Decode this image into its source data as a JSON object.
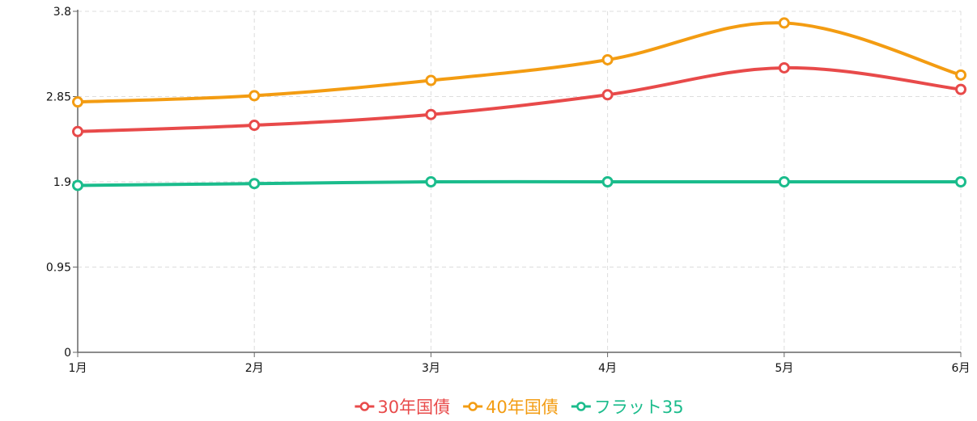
{
  "chart_data": {
    "type": "line",
    "categories": [
      "1月",
      "2月",
      "3月",
      "4月",
      "5月",
      "6月"
    ],
    "y_ticks": [
      "0",
      "0.95",
      "1.9",
      "2.85",
      "3.8"
    ],
    "ylim": [
      0,
      3.8
    ],
    "grid": true,
    "legend_position": "bottom-center",
    "series": [
      {
        "name": "30年国債",
        "color": "#e84a4a",
        "values": [
          2.46,
          2.53,
          2.65,
          2.87,
          3.17,
          2.93
        ]
      },
      {
        "name": "40年国債",
        "color": "#f39c12",
        "values": [
          2.79,
          2.86,
          3.03,
          3.26,
          3.67,
          3.09
        ]
      },
      {
        "name": "フラット35",
        "color": "#1bbc8c",
        "values": [
          1.86,
          1.88,
          1.9,
          1.9,
          1.9,
          1.9
        ]
      }
    ]
  }
}
